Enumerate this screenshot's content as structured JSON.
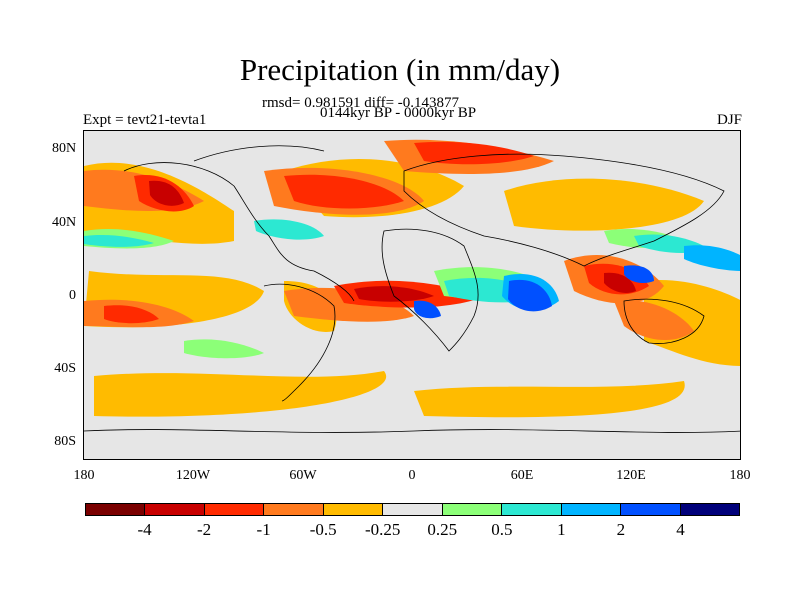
{
  "title": "Precipitation (in mm/day)",
  "stats": "rmsd= 0.981591 diff= -0.143877",
  "period": "0144kyr BP - 0000kyr BP",
  "experiment": "Expt = tevt21-tevta1",
  "season": "DJF",
  "y_ticks": [
    "80N",
    "40N",
    "0",
    "40S",
    "80S"
  ],
  "x_ticks": [
    "180",
    "120W",
    "60W",
    "0",
    "60E",
    "120E",
    "180"
  ],
  "colorbar": {
    "colors": [
      "#7a0000",
      "#c80000",
      "#ff2a00",
      "#ff7a1e",
      "#ffbb00",
      "#e6e6e6",
      "#8cff78",
      "#2ce8d2",
      "#00b4ff",
      "#0050ff",
      "#00007a"
    ],
    "labels": [
      "-4",
      "-2",
      "-1",
      "-0.5",
      "-0.25",
      "0.25",
      "0.5",
      "1",
      "2",
      "4"
    ]
  },
  "map_legend": {
    "background": "#e6e6e6",
    "coastline": "#000000"
  }
}
